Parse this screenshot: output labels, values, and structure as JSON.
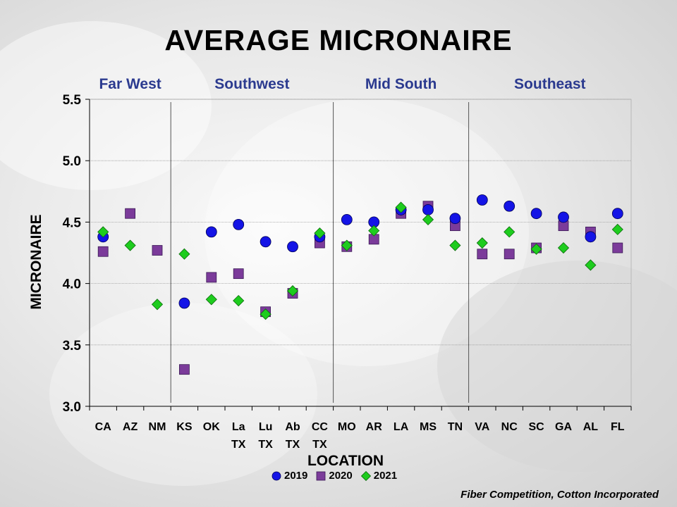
{
  "title": "AVERAGE MICRONAIRE",
  "credit": "Fiber Competition, Cotton Incorporated",
  "chart_data": {
    "type": "scatter",
    "title": "AVERAGE MICRONAIRE",
    "xlabel": "LOCATION",
    "ylabel": "MICRONAIRE",
    "ylim": [
      3.0,
      5.5
    ],
    "yticks": [
      "3.0",
      "3.5",
      "4.0",
      "4.5",
      "5.0",
      "5.5"
    ],
    "grid": true,
    "legend": "bottom",
    "categories": [
      [
        "CA"
      ],
      [
        "AZ"
      ],
      [
        "NM"
      ],
      [
        "KS"
      ],
      [
        "OK"
      ],
      [
        "La",
        "TX"
      ],
      [
        "Lu",
        "TX"
      ],
      [
        "Ab",
        "TX"
      ],
      [
        "CC",
        "TX"
      ],
      [
        "MO"
      ],
      [
        "AR"
      ],
      [
        "LA"
      ],
      [
        "MS"
      ],
      [
        "TN"
      ],
      [
        "VA"
      ],
      [
        "NC"
      ],
      [
        "SC"
      ],
      [
        "GA"
      ],
      [
        "AL"
      ],
      [
        "FL"
      ]
    ],
    "regions": [
      {
        "name": "Far West",
        "start": 0,
        "end": 2
      },
      {
        "name": "Southwest",
        "start": 3,
        "end": 8
      },
      {
        "name": "Mid South",
        "start": 9,
        "end": 13
      },
      {
        "name": "Southeast",
        "start": 14,
        "end": 19
      }
    ],
    "series": [
      {
        "name": "2019",
        "marker": "circle",
        "color": "#1414e6",
        "values": [
          4.38,
          null,
          null,
          3.84,
          4.42,
          4.48,
          4.34,
          4.3,
          4.38,
          4.52,
          4.5,
          4.6,
          4.6,
          4.53,
          4.68,
          4.63,
          4.57,
          4.54,
          4.38,
          4.57
        ]
      },
      {
        "name": "2020",
        "marker": "square",
        "color": "#7b3b9a",
        "values": [
          4.26,
          4.57,
          4.27,
          3.3,
          4.05,
          4.08,
          3.77,
          3.92,
          4.33,
          4.3,
          4.36,
          4.57,
          4.63,
          4.47,
          4.24,
          4.24,
          4.29,
          4.47,
          4.42,
          4.29
        ]
      },
      {
        "name": "2021",
        "marker": "diamond",
        "color": "#1ecc1e",
        "values": [
          4.42,
          4.31,
          3.83,
          4.24,
          3.87,
          3.86,
          3.75,
          3.94,
          4.41,
          4.31,
          4.43,
          4.62,
          4.52,
          4.31,
          4.33,
          4.42,
          4.28,
          4.29,
          4.15,
          4.44
        ]
      }
    ]
  }
}
